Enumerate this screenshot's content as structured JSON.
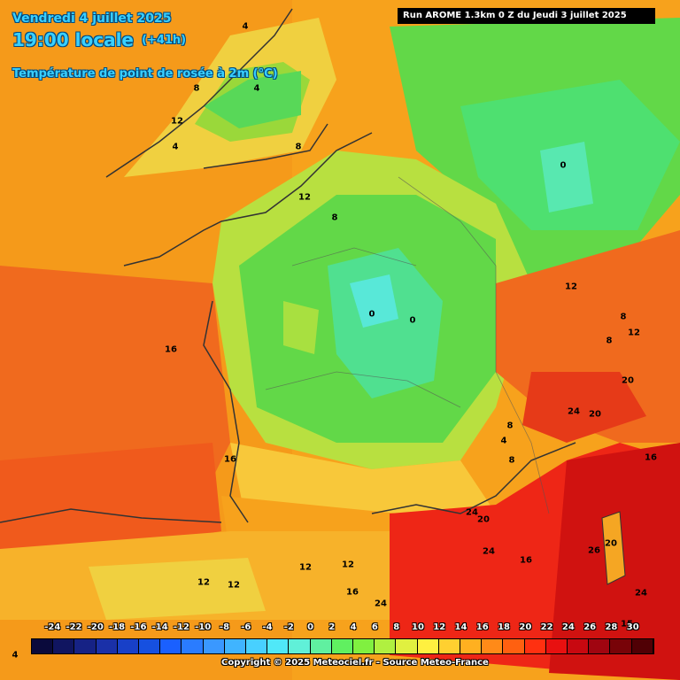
{
  "header": {
    "date": "Vendredi 4 juillet 2025",
    "time": "19:00 locale",
    "lead": "(+41h)",
    "parameter": "Température de point de rosée à 2m (°C)",
    "run": "Run AROME 1.3km 0 Z du Jeudi 3 juillet 2025"
  },
  "map_labels": [
    "4",
    "8",
    "4",
    "12",
    "4",
    "8",
    "12",
    "0",
    "8",
    "12",
    "8",
    "0",
    "0",
    "16",
    "12",
    "8",
    "8",
    "20",
    "24",
    "20",
    "4",
    "8",
    "16",
    "16",
    "20",
    "24",
    "24",
    "16",
    "20",
    "26",
    "24",
    "12",
    "12",
    "12",
    "12",
    "16",
    "24",
    "15",
    "4"
  ],
  "legend": {
    "unit": "°C",
    "ticks": [
      "-24",
      "-22",
      "-20",
      "-18",
      "-16",
      "-14",
      "-12",
      "-10",
      "-8",
      "-6",
      "-4",
      "-2",
      "0",
      "2",
      "4",
      "6",
      "8",
      "10",
      "12",
      "14",
      "16",
      "18",
      "20",
      "22",
      "24",
      "26",
      "28",
      "30"
    ],
    "colors": [
      "#0a0a3c",
      "#101560",
      "#162285",
      "#1a30a8",
      "#1840c8",
      "#1650e0",
      "#1a60ff",
      "#2a7cff",
      "#3a98ff",
      "#40b4ff",
      "#48d0ff",
      "#50e8f8",
      "#60f0d8",
      "#60f0a0",
      "#60f060",
      "#80f040",
      "#b0f040",
      "#e0f040",
      "#fff040",
      "#ffd030",
      "#ffb020",
      "#ff8a18",
      "#ff6010",
      "#ff3010",
      "#e81010",
      "#c80810",
      "#a00510",
      "#780308",
      "#500005"
    ]
  },
  "copyright": "Copyright © 2025 Meteociel.fr - Source Meteo-France"
}
